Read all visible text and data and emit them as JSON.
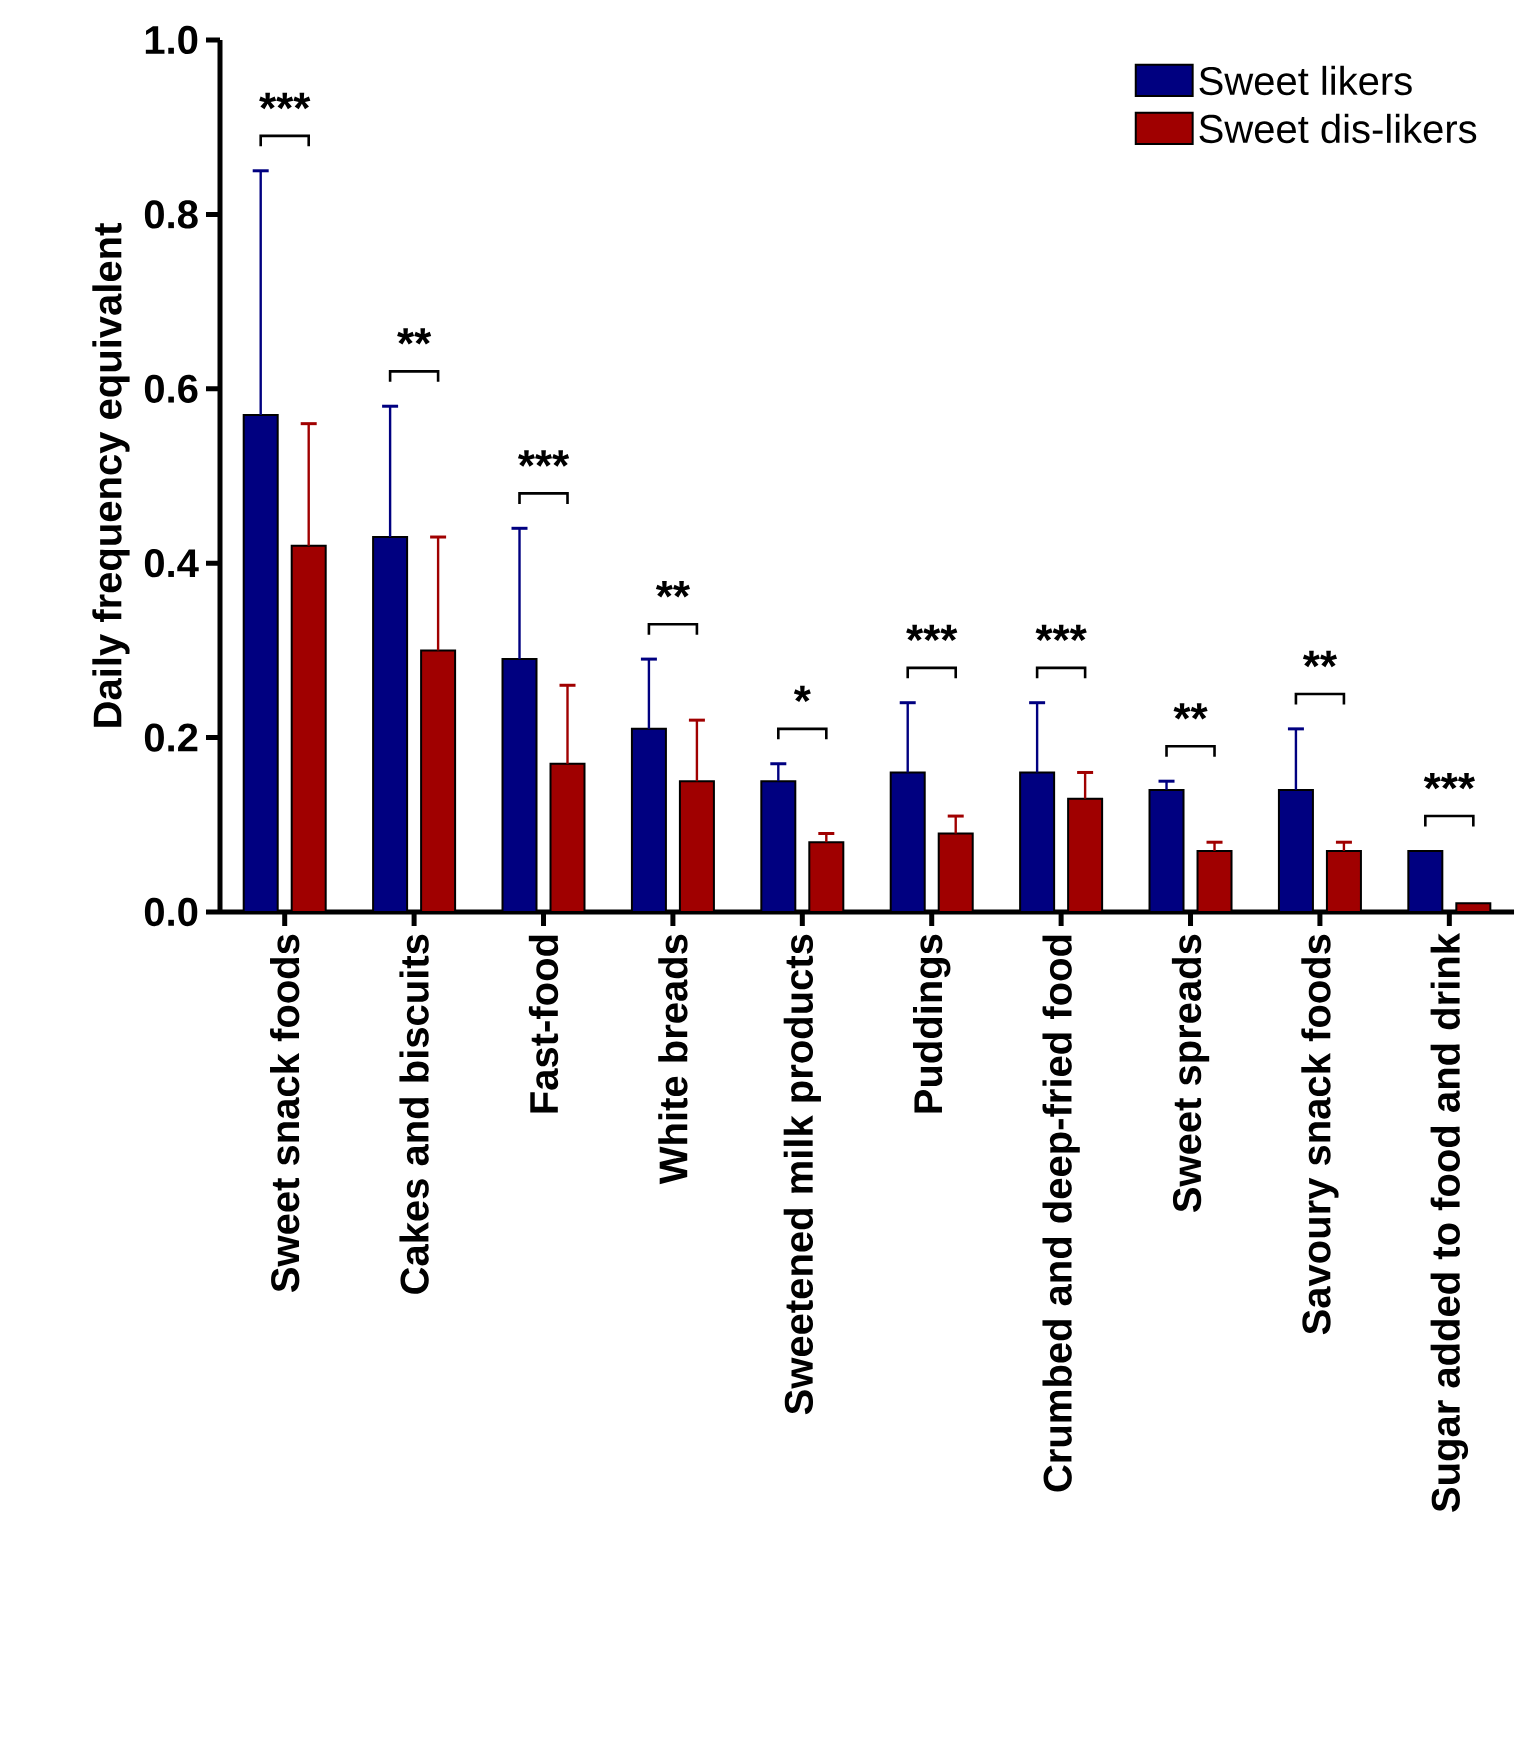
{
  "chart_data": {
    "type": "bar",
    "ylabel": "Daily frequency equivalent",
    "categories": [
      "Sweet snack foods",
      "Cakes and biscuits",
      "Fast-food",
      "White breads",
      "Sweetened milk products",
      "Puddings",
      "Crumbed and deep-fried food",
      "Sweet spreads",
      "Savoury snack foods",
      "Sugar added to food and drink"
    ],
    "series": [
      {
        "name": "Sweet likers",
        "color": "#000080",
        "values": [
          0.57,
          0.43,
          0.29,
          0.21,
          0.15,
          0.16,
          0.16,
          0.14,
          0.14,
          0.07
        ],
        "errors": [
          [
            0.57,
            0.85
          ],
          [
            0.43,
            0.58
          ],
          [
            0.29,
            0.44
          ],
          [
            0.21,
            0.29
          ],
          [
            0.15,
            0.17
          ],
          [
            0.16,
            0.24
          ],
          [
            0.16,
            0.24
          ],
          [
            0.14,
            0.15
          ],
          [
            0.14,
            0.21
          ],
          null
        ]
      },
      {
        "name": "Sweet dis-likers",
        "color": "#a00000",
        "values": [
          0.42,
          0.3,
          0.17,
          0.15,
          0.08,
          0.09,
          0.13,
          0.07,
          0.07,
          0.01
        ],
        "errors": [
          [
            0.42,
            0.56
          ],
          [
            0.3,
            0.43
          ],
          [
            0.17,
            0.26
          ],
          [
            0.15,
            0.22
          ],
          [
            0.08,
            0.09
          ],
          [
            0.09,
            0.11
          ],
          [
            0.13,
            0.16
          ],
          [
            0.07,
            0.08
          ],
          [
            0.07,
            0.08
          ],
          null
        ]
      }
    ],
    "ylim": [
      0,
      1.0
    ],
    "yticks": [
      {
        "value": 0,
        "label": "0.0"
      },
      0.2,
      0.4,
      0.6,
      0.8,
      {
        "value": 1.0,
        "label": "1.0"
      }
    ],
    "legend": "top right",
    "annotations": [
      "***",
      "**",
      "***",
      "**",
      "*",
      "***",
      "***",
      "**",
      "**",
      "***"
    ]
  }
}
